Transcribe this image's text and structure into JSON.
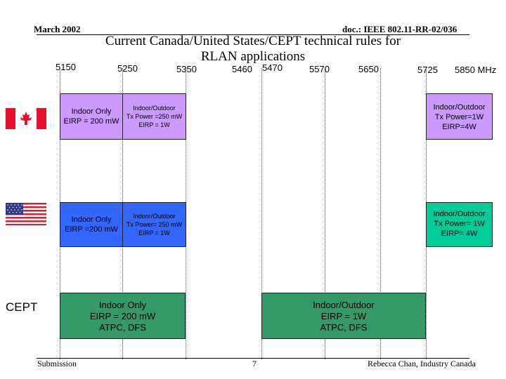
{
  "header": {
    "date": "March 2002",
    "doc_id": "doc.: IEEE 802.11-RR-02/036"
  },
  "title_line1": "Current Canada/United States/CEPT technical rules for",
  "title_line2": "RLAN applications",
  "frequencies": [
    "5150",
    "5250",
    "5350",
    "5460",
    "5470",
    "5570",
    "5650",
    "5725",
    "5850 MHz"
  ],
  "regions": {
    "cept_label": "CEPT"
  },
  "canada": {
    "low_band": {
      "line1": "Indoor Only",
      "line2": "EIRP = 200 mW"
    },
    "mid_band": {
      "line1": "Indoor/Outdoor",
      "line2": "Tx Power =250 mW",
      "line3": "EIRP = 1W"
    },
    "high_band": {
      "line1": "Indoor/Outdoor",
      "line2": "Tx Power=1W",
      "line3": "EIRP=4W"
    }
  },
  "usa": {
    "low_band": {
      "line1": "Indoor Only",
      "line2": "EIRP =200 mW"
    },
    "mid_band": {
      "line1": "Indoor/Outdoor",
      "line2": "Tx Power= 250 mW",
      "line3": "EIRP = 1W"
    },
    "high_band": {
      "line1": "Indoor/Outdoor",
      "line2": "Tx Power= 1W",
      "line3": "EIRP= 4W"
    }
  },
  "cept": {
    "low_band": {
      "line1": "Indoor Only",
      "line2": "EIRP = 200 mW",
      "line3": "ATPC, DFS"
    },
    "high_band": {
      "line1": "Indoor/Outdoor",
      "line2": "EIRP = 1W",
      "line3": "ATPC, DFS"
    }
  },
  "footer": {
    "left": "Submission",
    "page": "7",
    "right": "Rebecca Chan, Industry Canada"
  },
  "colors": {
    "canada_low": "#cc99ff",
    "canada_mid": "#cc99ff",
    "canada_high": "#cc99ff",
    "usa_low": "#3366ff",
    "usa_mid": "#3366ff",
    "usa_high": "#00cc99",
    "cept": "#339966"
  }
}
